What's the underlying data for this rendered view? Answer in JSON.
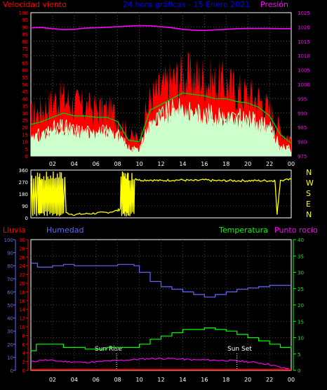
{
  "top": {
    "title": "24 hora gráficas - 15 Enero 2021",
    "left_label": "Velocidad viento",
    "right_label": "Presión",
    "colors": {
      "title": "#0000ff",
      "left_label": "#ff0000",
      "right_label": "#ff00ff"
    }
  },
  "dir_labels": [
    "N",
    "W",
    "S",
    "E",
    "N"
  ],
  "bottom": {
    "labels": {
      "lluvia": "Lluvia",
      "humedad": "Humedad",
      "temperatura": "Temperatura",
      "rocio": "Punto rocío"
    },
    "colors": {
      "lluvia": "#ff0000",
      "humedad": "#6666ff",
      "temperatura": "#00ff00",
      "rocio": "#ff00ff"
    },
    "annotations": {
      "sunrise": "Sun Rise",
      "sunset": "Sun Set"
    }
  },
  "x_ticks": [
    "02",
    "04",
    "06",
    "08",
    "10",
    "12",
    "14",
    "16",
    "18",
    "20",
    "22",
    "00"
  ],
  "chart_data": [
    {
      "type": "line",
      "name": "wind_and_pressure",
      "x_unit": "hour",
      "x_range": [
        0,
        24
      ],
      "y_left": {
        "label": "Velocidad viento",
        "ticks": [
          0,
          5,
          10,
          15,
          20,
          25,
          30,
          35,
          40,
          45,
          50,
          55,
          60,
          65,
          70,
          75,
          80,
          85,
          90,
          95,
          100
        ],
        "range": [
          0,
          100
        ]
      },
      "y_right": {
        "label": "Presión",
        "ticks": [
          975,
          980,
          985,
          990,
          995,
          1000,
          1005,
          1010,
          1015,
          1020,
          1025
        ],
        "range": [
          975,
          1025
        ]
      },
      "series": [
        {
          "axis": "left",
          "color": "#ff0000",
          "x": [
            0,
            1,
            2,
            3,
            4,
            5,
            6,
            7,
            8,
            9,
            10,
            11,
            12,
            13,
            14,
            15,
            16,
            17,
            18,
            19,
            20,
            21,
            22,
            23,
            24
          ],
          "y": [
            28,
            32,
            38,
            40,
            36,
            34,
            32,
            32,
            28,
            14,
            12,
            40,
            46,
            52,
            56,
            54,
            54,
            50,
            50,
            45,
            42,
            40,
            32,
            18,
            12
          ]
        },
        {
          "axis": "left",
          "color": "#00cc00",
          "x": [
            0,
            1,
            2,
            3,
            4,
            5,
            6,
            7,
            8,
            9,
            10,
            11,
            12,
            13,
            14,
            15,
            16,
            17,
            18,
            19,
            20,
            21,
            22,
            23,
            24
          ],
          "y": [
            22,
            24,
            27,
            30,
            28,
            28,
            27,
            27,
            24,
            11,
            10,
            32,
            36,
            40,
            44,
            43,
            42,
            40,
            40,
            38,
            37,
            34,
            28,
            15,
            9
          ]
        },
        {
          "axis": "left",
          "color": "#ccffcc",
          "x": [
            0,
            1,
            2,
            3,
            4,
            5,
            6,
            7,
            8,
            9,
            10,
            11,
            12,
            13,
            14,
            15,
            16,
            17,
            18,
            19,
            20,
            21,
            22,
            23,
            24
          ],
          "y": [
            12,
            14,
            18,
            19,
            17,
            16,
            15,
            16,
            14,
            5,
            4,
            22,
            26,
            30,
            30,
            28,
            28,
            26,
            26,
            25,
            24,
            22,
            18,
            6,
            4
          ]
        },
        {
          "axis": "right",
          "color": "#ff00ff",
          "x": [
            0,
            1,
            2,
            3,
            4,
            5,
            6,
            7,
            8,
            9,
            10,
            11,
            12,
            13,
            14,
            15,
            16,
            17,
            18,
            19,
            20,
            21,
            22,
            23,
            24
          ],
          "y": [
            1019.7,
            1019.8,
            1019.4,
            1019.1,
            1019.2,
            1019.6,
            1019.7,
            1019.9,
            1020.1,
            1020.3,
            1020.5,
            1020.4,
            1020.1,
            1019.7,
            1019.2,
            1018.9,
            1018.8,
            1019.0,
            1019.2,
            1019.4,
            1019.5,
            1019.5,
            1019.5,
            1019.4,
            1019.4
          ]
        }
      ]
    },
    {
      "type": "line",
      "name": "wind_direction",
      "x_unit": "hour",
      "x_range": [
        0,
        24
      ],
      "y": {
        "ticks": [
          0,
          90,
          180,
          270,
          360
        ],
        "range": [
          0,
          360
        ]
      },
      "series": [
        {
          "color": "#ffff00",
          "x": [
            0,
            0.7,
            1,
            1.5,
            2,
            2.5,
            3,
            4,
            5,
            6,
            7,
            8,
            8.5,
            8.8,
            9,
            9.5,
            10,
            11,
            12,
            13,
            14,
            15,
            16,
            17,
            18,
            19,
            20,
            21,
            22,
            22.5,
            22.7,
            23,
            24
          ],
          "y": [
            270,
            300,
            20,
            320,
            30,
            300,
            40,
            25,
            30,
            35,
            40,
            55,
            80,
            300,
            40,
            300,
            285,
            285,
            280,
            285,
            285,
            280,
            285,
            280,
            280,
            280,
            280,
            280,
            280,
            280,
            30,
            280,
            290
          ]
        }
      ]
    },
    {
      "type": "line",
      "name": "rain_humidity_temperature_dewpoint",
      "x_unit": "hour",
      "x_range": [
        0,
        24
      ],
      "y_lluvia": {
        "label": "Lluvia",
        "ticks": [
          0,
          2,
          4,
          6,
          8,
          10,
          12,
          14,
          16,
          18,
          20,
          22,
          24,
          26,
          28,
          30
        ],
        "range": [
          0,
          30
        ]
      },
      "y_humedad": {
        "label": "Humedad",
        "ticks": [
          0,
          10,
          20,
          30,
          40,
          50,
          60,
          70,
          80,
          90,
          100
        ],
        "range": [
          0,
          100
        ]
      },
      "y_temperatura": {
        "label": "Temperatura",
        "ticks": [
          0,
          5,
          10,
          15,
          20,
          25,
          30,
          35,
          40
        ],
        "range": [
          0,
          40
        ]
      },
      "series": [
        {
          "label": "Lluvia",
          "axis": "lluvia",
          "color": "#ff0000",
          "x": [
            0,
            24
          ],
          "y": [
            0,
            0
          ]
        },
        {
          "label": "Humedad",
          "axis": "humedad",
          "color": "#6666ff",
          "x": [
            0,
            0.6,
            1,
            2,
            3,
            4,
            5,
            6,
            7,
            8,
            9,
            9.5,
            10,
            11,
            12,
            13,
            14,
            15,
            16,
            17,
            18,
            19,
            20,
            21,
            22,
            23,
            24
          ],
          "y": [
            82,
            79,
            79,
            80,
            81,
            80,
            80,
            80,
            80,
            81,
            81,
            80,
            75,
            68,
            64,
            62,
            60,
            58,
            56,
            58,
            60,
            62,
            63,
            64,
            65,
            65,
            65
          ]
        },
        {
          "label": "Temperatura",
          "axis": "temperatura",
          "color": "#00ff00",
          "x": [
            0,
            0.5,
            1,
            2,
            3,
            4,
            5,
            6,
            7,
            8,
            9,
            9.5,
            10,
            11,
            12,
            13,
            14,
            15,
            16,
            17,
            18,
            19,
            20,
            21,
            22,
            23,
            24
          ],
          "y": [
            6,
            8,
            8,
            8,
            7,
            7,
            6.5,
            6.5,
            7,
            7,
            7,
            7,
            8,
            9.5,
            10.5,
            11.5,
            12.5,
            12.5,
            13,
            12.5,
            12,
            11,
            10,
            9,
            8,
            7,
            7.5
          ]
        },
        {
          "label": "Punto rocío",
          "axis": "temperatura",
          "color": "#ff00ff",
          "x": [
            0,
            1,
            2,
            3,
            4,
            5,
            6,
            7,
            8,
            9,
            10,
            11,
            12,
            13,
            14,
            15,
            16,
            17,
            18,
            19,
            20,
            21,
            22,
            23,
            24
          ],
          "y": [
            2.5,
            3.2,
            3.0,
            2.7,
            2.6,
            2.4,
            2.6,
            2.8,
            3.0,
            3.2,
            3.4,
            3.6,
            3.6,
            3.6,
            3.4,
            3.2,
            3.2,
            3.1,
            3.0,
            2.9,
            2.6,
            2.3,
            1.8,
            0.9,
            0.3
          ]
        }
      ],
      "markers": [
        {
          "label": "Sun Rise",
          "x": 7.9
        },
        {
          "label": "Sun Set",
          "x": 19.0
        }
      ]
    }
  ]
}
